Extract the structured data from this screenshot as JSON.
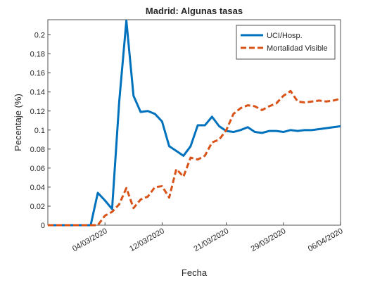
{
  "chart_data": {
    "type": "line",
    "title": "Madrid: Algunas tasas",
    "xlabel": "Fecha",
    "ylabel": "Pecentaje (%)",
    "x": [
      "25/02/2020",
      "26/02/2020",
      "27/02/2020",
      "28/02/2020",
      "29/02/2020",
      "01/03/2020",
      "02/03/2020",
      "03/03/2020",
      "04/03/2020",
      "05/03/2020",
      "06/03/2020",
      "07/03/2020",
      "08/03/2020",
      "09/03/2020",
      "10/03/2020",
      "11/03/2020",
      "12/03/2020",
      "13/03/2020",
      "14/03/2020",
      "15/03/2020",
      "16/03/2020",
      "17/03/2020",
      "18/03/2020",
      "19/03/2020",
      "20/03/2020",
      "21/03/2020",
      "22/03/2020",
      "23/03/2020",
      "24/03/2020",
      "25/03/2020",
      "26/03/2020",
      "27/03/2020",
      "28/03/2020",
      "29/03/2020",
      "30/03/2020",
      "31/03/2020",
      "01/04/2020",
      "02/04/2020",
      "03/04/2020",
      "04/04/2020",
      "05/04/2020",
      "06/04/2020"
    ],
    "series": [
      {
        "name": "UCI/Hosp.",
        "color": "#0072bd",
        "dash": "solid",
        "values": [
          0,
          0,
          0,
          0,
          0,
          0,
          0,
          0.034,
          0.026,
          0.017,
          0.13,
          0.215,
          0.136,
          0.119,
          0.12,
          0.117,
          0.109,
          0.083,
          0.078,
          0.073,
          0.083,
          0.105,
          0.105,
          0.114,
          0.104,
          0.099,
          0.098,
          0.1,
          0.103,
          0.098,
          0.097,
          0.099,
          0.099,
          0.098,
          0.1,
          0.099,
          0.1,
          0.1,
          0.101,
          0.102,
          0.103,
          0.104
        ]
      },
      {
        "name": "Mortalidad Visible",
        "color": "#d95319",
        "dash": "dashed",
        "values": [
          0,
          0,
          0,
          0,
          0,
          0,
          0,
          0,
          0.01,
          0.014,
          0.022,
          0.039,
          0.018,
          0.027,
          0.03,
          0.04,
          0.041,
          0.029,
          0.059,
          0.051,
          0.071,
          0.069,
          0.073,
          0.087,
          0.09,
          0.1,
          0.117,
          0.123,
          0.126,
          0.125,
          0.121,
          0.125,
          0.128,
          0.136,
          0.141,
          0.13,
          0.129,
          0.13,
          0.131,
          0.13,
          0.131,
          0.133
        ]
      }
    ],
    "xlim": [
      "25/02/2020",
      "06/04/2020"
    ],
    "xticks": [
      "04/03/2020",
      "12/03/2020",
      "21/03/2020",
      "29/03/2020",
      "06/04/2020"
    ],
    "ylim": [
      0,
      0.216
    ],
    "yticks": [
      0,
      0.02,
      0.04,
      0.06,
      0.08,
      0.1,
      0.12,
      0.14,
      0.16,
      0.18,
      0.2
    ],
    "grid": false,
    "legend": "northeast"
  }
}
